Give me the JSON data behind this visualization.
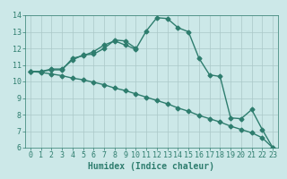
{
  "line1_x": [
    0,
    1,
    2,
    3,
    4,
    5,
    6,
    7,
    8,
    9,
    10,
    11,
    12,
    13,
    14,
    15,
    16,
    17,
    18,
    19,
    20,
    21,
    22,
    23
  ],
  "line1_y": [
    10.6,
    10.6,
    10.7,
    10.7,
    11.4,
    11.55,
    11.8,
    12.2,
    12.45,
    12.2,
    11.95,
    13.05,
    13.85,
    13.8,
    13.25,
    13.0,
    11.4,
    10.4,
    10.3,
    7.8,
    7.75,
    8.3,
    7.1,
    6.0
  ],
  "line2_x": [
    0,
    1,
    2,
    3,
    4,
    5,
    6,
    7,
    8,
    9,
    10
  ],
  "line2_y": [
    10.6,
    10.6,
    10.75,
    10.75,
    11.3,
    11.6,
    11.65,
    12.0,
    12.5,
    12.45,
    12.0
  ],
  "line3_x": [
    0,
    1,
    2,
    3,
    4,
    5,
    6,
    7,
    8,
    9,
    10,
    11,
    12,
    13,
    14,
    15,
    16,
    17,
    18,
    19,
    20,
    21,
    22,
    23
  ],
  "line3_y": [
    10.6,
    10.55,
    10.45,
    10.35,
    10.2,
    10.1,
    9.95,
    9.8,
    9.6,
    9.45,
    9.25,
    9.05,
    8.85,
    8.65,
    8.4,
    8.2,
    7.95,
    7.75,
    7.55,
    7.3,
    7.1,
    6.9,
    6.6,
    6.0
  ],
  "color": "#2e7d6e",
  "bg_color": "#cce8e8",
  "grid_color": "#aac8c8",
  "xlabel": "Humidex (Indice chaleur)",
  "ylim": [
    6,
    14
  ],
  "xlim": [
    -0.5,
    23.5
  ],
  "yticks": [
    6,
    7,
    8,
    9,
    10,
    11,
    12,
    13,
    14
  ],
  "xticks": [
    0,
    1,
    2,
    3,
    4,
    5,
    6,
    7,
    8,
    9,
    10,
    11,
    12,
    13,
    14,
    15,
    16,
    17,
    18,
    19,
    20,
    21,
    22,
    23
  ],
  "marker": "D",
  "marker_size": 2.5,
  "linewidth": 1.0,
  "xlabel_fontsize": 7,
  "tick_fontsize": 6
}
